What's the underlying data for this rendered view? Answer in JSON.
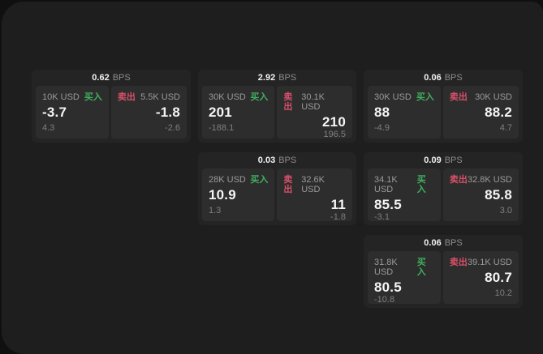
{
  "labels": {
    "buy": "买入",
    "sell": "卖出",
    "bps_unit": "BPS"
  },
  "colors": {
    "page_bg": "#101010",
    "panel_bg": "#1e1e1e",
    "card_bg": "#242424",
    "tile_bg": "#2d2d2d",
    "buy_green": "#3fb05f",
    "sell_red": "#d8506a",
    "primary_text": "#f5f5f5",
    "muted_text": "#9a9a9a"
  },
  "cards": [
    {
      "bps": "0.62",
      "buy": {
        "amount": "10K USD",
        "price": "-3.7",
        "delta": "4.3"
      },
      "sell": {
        "amount": "5.5K USD",
        "price": "-1.8",
        "delta": "-2.6"
      }
    },
    {
      "bps": "2.92",
      "buy": {
        "amount": "30K USD",
        "price": "201",
        "delta": "-188.1"
      },
      "sell": {
        "amount": "30.1K USD",
        "price": "210",
        "delta": "196.5"
      }
    },
    {
      "bps": "0.06",
      "buy": {
        "amount": "30K USD",
        "price": "88",
        "delta": "-4.9"
      },
      "sell": {
        "amount": "30K USD",
        "price": "88.2",
        "delta": "4.7"
      }
    },
    {
      "bps": "0.03",
      "buy": {
        "amount": "28K USD",
        "price": "10.9",
        "delta": "1.3"
      },
      "sell": {
        "amount": "32.6K USD",
        "price": "11",
        "delta": "-1.8"
      }
    },
    {
      "bps": "0.09",
      "buy": {
        "amount": "34.1K USD",
        "price": "85.5",
        "delta": "-3.1"
      },
      "sell": {
        "amount": "32.8K USD",
        "price": "85.8",
        "delta": "3.0"
      }
    },
    {
      "bps": "0.06",
      "buy": {
        "amount": "31.8K USD",
        "price": "80.5",
        "delta": "-10.8"
      },
      "sell": {
        "amount": "39.1K USD",
        "price": "80.7",
        "delta": "10.2"
      }
    }
  ]
}
